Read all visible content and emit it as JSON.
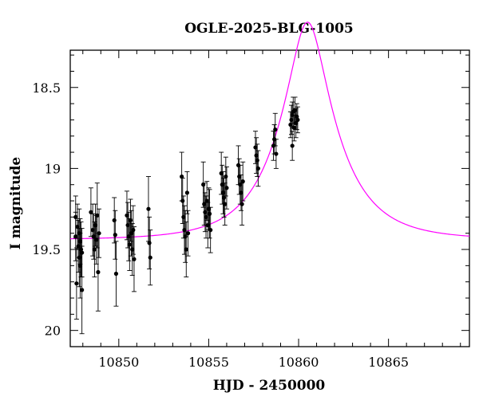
{
  "chart_data": {
    "type": "scatter",
    "title": "OGLE-2025-BLG-1005",
    "xlabel": "HJD - 2450000",
    "ylabel": "I magnitude",
    "xlim": [
      10847.3,
      10869.5
    ],
    "ylim": [
      20.1,
      18.27
    ],
    "y_inverted": true,
    "grid": false,
    "x_ticks": [
      10850,
      10855,
      10860,
      10865
    ],
    "y_ticks": [
      18.5,
      19,
      19.5,
      20
    ],
    "x_tick_labels": [
      "10850",
      "10855",
      "10860",
      "10865"
    ],
    "y_tick_labels": [
      "18.5",
      "19",
      "19.5",
      "20"
    ],
    "colors": {
      "data": "#000000",
      "model": "#ff00ff",
      "axes": "#000000"
    },
    "series": [
      {
        "type": "scatter_errorbar",
        "points": [
          [
            10847.6,
            19.3,
            0.13
          ],
          [
            10847.6,
            19.42,
            0.15
          ],
          [
            10847.65,
            19.71,
            0.22
          ],
          [
            10847.7,
            19.36,
            0.14
          ],
          [
            10847.75,
            19.48,
            0.16
          ],
          [
            10847.8,
            19.55,
            0.18
          ],
          [
            10847.8,
            19.4,
            0.15
          ],
          [
            10847.85,
            19.45,
            0.14
          ],
          [
            10847.85,
            19.6,
            0.2
          ],
          [
            10847.9,
            19.5,
            0.17
          ],
          [
            10847.95,
            19.75,
            0.27
          ],
          [
            10847.95,
            19.52,
            0.15
          ],
          [
            10848.45,
            19.27,
            0.15
          ],
          [
            10848.55,
            19.38,
            0.16
          ],
          [
            10848.6,
            19.42,
            0.14
          ],
          [
            10848.65,
            19.5,
            0.17
          ],
          [
            10848.7,
            19.35,
            0.13
          ],
          [
            10848.75,
            19.44,
            0.15
          ],
          [
            10848.8,
            19.29,
            0.2
          ],
          [
            10848.85,
            19.64,
            0.24
          ],
          [
            10848.9,
            19.4,
            0.15
          ],
          [
            10849.75,
            19.32,
            0.14
          ],
          [
            10849.8,
            19.41,
            0.15
          ],
          [
            10849.85,
            19.65,
            0.2
          ],
          [
            10850.45,
            19.29,
            0.15
          ],
          [
            10850.5,
            19.35,
            0.14
          ],
          [
            10850.55,
            19.42,
            0.15
          ],
          [
            10850.6,
            19.47,
            0.16
          ],
          [
            10850.65,
            19.32,
            0.13
          ],
          [
            10850.7,
            19.4,
            0.14
          ],
          [
            10850.75,
            19.5,
            0.16
          ],
          [
            10850.8,
            19.38,
            0.15
          ],
          [
            10850.85,
            19.56,
            0.2
          ],
          [
            10851.65,
            19.25,
            0.2
          ],
          [
            10851.7,
            19.46,
            0.16
          ],
          [
            10851.75,
            19.55,
            0.17
          ],
          [
            10853.5,
            19.05,
            0.15
          ],
          [
            10853.55,
            19.2,
            0.14
          ],
          [
            10853.6,
            19.3,
            0.13
          ],
          [
            10853.65,
            19.38,
            0.15
          ],
          [
            10853.7,
            19.42,
            0.16
          ],
          [
            10853.75,
            19.5,
            0.17
          ],
          [
            10853.8,
            19.15,
            0.13
          ],
          [
            10853.85,
            19.4,
            0.14
          ],
          [
            10854.7,
            19.1,
            0.14
          ],
          [
            10854.75,
            19.22,
            0.13
          ],
          [
            10854.8,
            19.27,
            0.12
          ],
          [
            10854.85,
            19.3,
            0.13
          ],
          [
            10854.9,
            19.2,
            0.12
          ],
          [
            10854.95,
            19.35,
            0.14
          ],
          [
            10855.0,
            19.25,
            0.13
          ],
          [
            10855.05,
            19.28,
            0.15
          ],
          [
            10855.1,
            19.38,
            0.14
          ],
          [
            10855.7,
            19.03,
            0.13
          ],
          [
            10855.75,
            19.1,
            0.12
          ],
          [
            10855.8,
            19.15,
            0.13
          ],
          [
            10855.85,
            19.18,
            0.12
          ],
          [
            10855.9,
            19.22,
            0.13
          ],
          [
            10855.95,
            19.05,
            0.12
          ],
          [
            10856.0,
            19.12,
            0.13
          ],
          [
            10856.65,
            18.98,
            0.12
          ],
          [
            10856.7,
            19.05,
            0.11
          ],
          [
            10856.75,
            19.1,
            0.12
          ],
          [
            10856.8,
            19.15,
            0.11
          ],
          [
            10856.85,
            19.22,
            0.13
          ],
          [
            10856.9,
            19.08,
            0.12
          ],
          [
            10857.6,
            18.87,
            0.1
          ],
          [
            10857.65,
            18.92,
            0.11
          ],
          [
            10857.7,
            18.95,
            0.1
          ],
          [
            10857.75,
            19.0,
            0.11
          ],
          [
            10858.6,
            18.86,
            0.09
          ],
          [
            10858.65,
            18.82,
            0.09
          ],
          [
            10858.7,
            18.76,
            0.1
          ],
          [
            10858.75,
            18.91,
            0.09
          ],
          [
            10859.55,
            18.73,
            0.08
          ],
          [
            10859.6,
            18.7,
            0.09
          ],
          [
            10859.65,
            18.67,
            0.08
          ],
          [
            10859.7,
            18.65,
            0.09
          ],
          [
            10859.75,
            18.75,
            0.08
          ],
          [
            10859.8,
            18.64,
            0.08
          ],
          [
            10859.85,
            18.72,
            0.09
          ],
          [
            10859.9,
            18.68,
            0.08
          ],
          [
            10859.65,
            18.86,
            0.09
          ],
          [
            10859.95,
            18.7,
            0.08
          ]
        ]
      },
      {
        "type": "line",
        "model": {
          "t0": 10860.5,
          "u0": 0.3,
          "tE": 3.2,
          "base": 19.44
        }
      }
    ]
  }
}
